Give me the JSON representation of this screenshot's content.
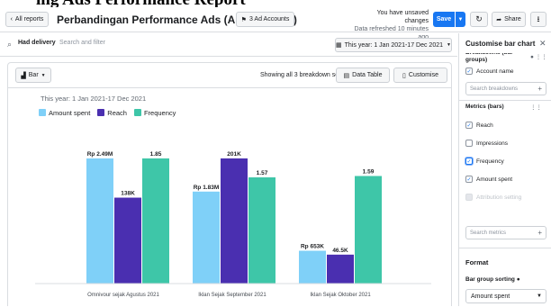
{
  "caption_text": "ing Ads Performance Report",
  "topbar": {
    "back_label": "All reports",
    "title": "Perbandingan Performance Ads (Aud-Sep-Oct)",
    "ads_label": "3 Ad Accounts",
    "unsaved_line1": "You have unsaved changes",
    "unsaved_line2": "Data refreshed 10 minutes ago",
    "save_label": "Save",
    "share_label": "Share"
  },
  "filterbar": {
    "chip": "Had delivery",
    "placeholder": "Search and filter",
    "date_label": "This year: 1 Jan 2021-17 Dec 2021"
  },
  "toolbar": {
    "chart_type_label": "Bar",
    "segments_text": "Showing all 3 breakdown segments",
    "data_table_label": "Data Table",
    "customise_label": "Customise"
  },
  "chart_data": {
    "type": "bar",
    "subtitle": "This year: 1 Jan 2021-17 Dec 2021",
    "categories": [
      "Omnivour sejak Agustus 2021",
      "Iklan Sejak September 2021",
      "Iklan Sejak Oktober 2021"
    ],
    "series": [
      {
        "name": "Amount spent",
        "color": "#7fd0f8",
        "values": [
          2490000,
          1830000,
          653000
        ],
        "labels": [
          "Rp 2.49M",
          "Rp 1.83M",
          "Rp 653K"
        ]
      },
      {
        "name": "Reach",
        "color": "#4a2fb0",
        "values": [
          138000,
          201000,
          46500
        ],
        "labels": [
          "138K",
          "201K",
          "46.5K"
        ]
      },
      {
        "name": "Frequency",
        "color": "#3ec6a8",
        "values": [
          1.85,
          1.57,
          1.59
        ],
        "labels": [
          "1.85",
          "1.57",
          "1.59"
        ]
      }
    ]
  },
  "panel": {
    "title": "Customise bar chart",
    "breakdowns_label": "Breakdowns (bar groups)",
    "account_name": "Account name",
    "search_breakdowns": "Search breakdowns",
    "metrics_label": "Metrics (bars)",
    "metrics": [
      {
        "label": "Reach",
        "checked": true
      },
      {
        "label": "Impressions",
        "checked": false
      },
      {
        "label": "Frequency",
        "checked": true
      },
      {
        "label": "Amount spent",
        "checked": true
      },
      {
        "label": "Attribution setting",
        "checked": false
      }
    ],
    "search_metrics": "Search metrics",
    "format_label": "Format",
    "sorting_label": "Bar group sorting",
    "sorting_value": "Amount spent"
  },
  "icons": {
    "back": "chevron-left-icon",
    "ads": "ad-accounts-icon",
    "refresh": "refresh-icon",
    "share": "share-icon",
    "download": "download-icon",
    "search": "search-icon",
    "calendar": "calendar-icon",
    "bar_chart": "bar-chart-icon",
    "table": "table-icon",
    "customise": "customise-icon",
    "close": "close-icon",
    "info": "info-icon",
    "drag": "drag-handle-icon"
  }
}
